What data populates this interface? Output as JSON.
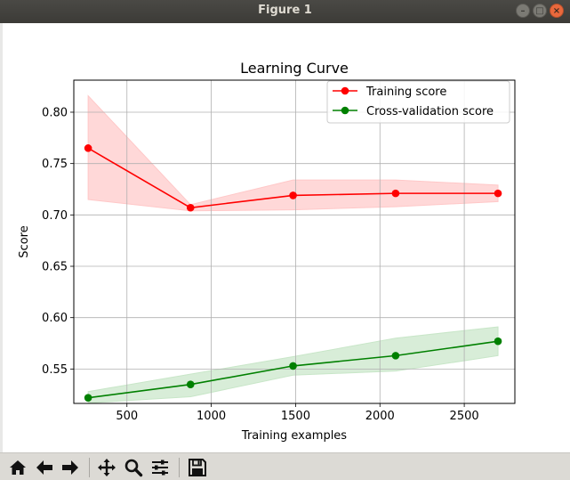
{
  "window": {
    "title": "Figure 1"
  },
  "toolbar": {
    "buttons": [
      {
        "name": "home",
        "icon": "home-icon"
      },
      {
        "name": "back",
        "icon": "arrow-left-icon"
      },
      {
        "name": "forward",
        "icon": "arrow-right-icon"
      },
      {
        "name": "pan",
        "icon": "move-icon"
      },
      {
        "name": "zoom",
        "icon": "magnifier-icon"
      },
      {
        "name": "configure",
        "icon": "sliders-icon"
      },
      {
        "name": "save",
        "icon": "floppy-disk-icon"
      }
    ]
  },
  "chart_data": {
    "type": "line",
    "title": "Learning Curve",
    "xlabel": "Training examples",
    "ylabel": "Score",
    "xlim": [
      185,
      2800
    ],
    "ylim": [
      0.5165,
      0.8312
    ],
    "xticks": [
      500,
      1000,
      1500,
      2000,
      2500
    ],
    "xtick_labels": [
      "500",
      "1000",
      "1500",
      "2000",
      "2500"
    ],
    "yticks": [
      0.55,
      0.6,
      0.65,
      0.7,
      0.75,
      0.8
    ],
    "ytick_labels": [
      "0.55",
      "0.60",
      "0.65",
      "0.70",
      "0.75",
      "0.80"
    ],
    "grid": true,
    "legend": "upper-right",
    "x": [
      270,
      877,
      1485,
      2093,
      2700
    ],
    "series": [
      {
        "name": "Training score",
        "color": "#ff0000",
        "band_color": "#ffc8c8",
        "values": [
          0.765,
          0.707,
          0.719,
          0.721,
          0.721
        ],
        "lower": [
          0.715,
          0.704,
          0.705,
          0.708,
          0.713
        ],
        "upper": [
          0.816,
          0.71,
          0.734,
          0.734,
          0.729
        ]
      },
      {
        "name": "Cross-validation score",
        "color": "#008000",
        "band_color": "#c8e6c8",
        "values": [
          0.522,
          0.535,
          0.553,
          0.563,
          0.577
        ],
        "lower": [
          0.517,
          0.523,
          0.544,
          0.548,
          0.563
        ],
        "upper": [
          0.528,
          0.545,
          0.562,
          0.58,
          0.591
        ]
      }
    ]
  }
}
